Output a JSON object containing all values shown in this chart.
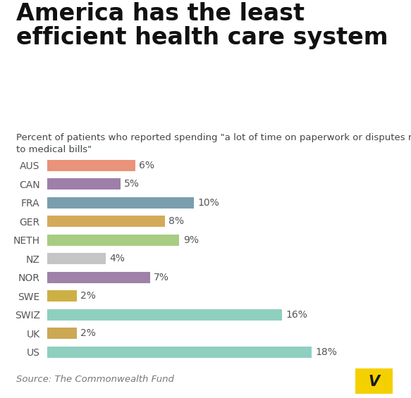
{
  "title": "America has the least\nefficient health care system",
  "subtitle": "Percent of patients who reported spending \"a lot of time on paperwork or disputes related\nto medical bills\"",
  "source": "Source: The Commonwealth Fund",
  "categories": [
    "AUS",
    "CAN",
    "FRA",
    "GER",
    "NETH",
    "NZ",
    "NOR",
    "SWE",
    "SWIZ",
    "UK",
    "US"
  ],
  "values": [
    6,
    5,
    10,
    8,
    9,
    4,
    7,
    2,
    16,
    2,
    18
  ],
  "bar_colors": [
    "#E8937A",
    "#9E7FAA",
    "#7A9EAD",
    "#D4AA5A",
    "#A8CC82",
    "#C5C5C5",
    "#9E82AA",
    "#CCB045",
    "#8ECFBF",
    "#CCA855",
    "#8ECFBF"
  ],
  "label_color": "#555555",
  "background_color": "#ffffff",
  "title_fontsize": 24,
  "subtitle_fontsize": 9.5,
  "source_fontsize": 9.5,
  "tick_fontsize": 10,
  "value_fontsize": 10,
  "vox_yellow": "#F5D000",
  "xlim": [
    0,
    21
  ]
}
